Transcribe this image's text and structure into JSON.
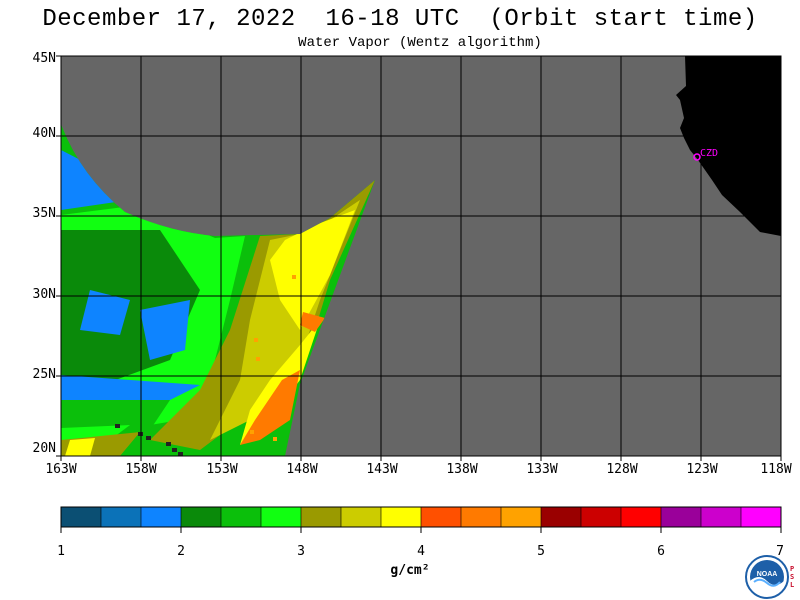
{
  "header": {
    "title": "December 17, 2022  16-18 UTC  (Orbit start time)",
    "subtitle": "Water Vapor (Wentz algorithm)"
  },
  "map": {
    "lat_labels": [
      "45N",
      "40N",
      "35N",
      "30N",
      "25N",
      "20N"
    ],
    "lon_labels": [
      "163W",
      "158W",
      "153W",
      "148W",
      "143W",
      "138W",
      "133W",
      "128W",
      "123W",
      "118W"
    ],
    "station_label": "CZD",
    "colors": {
      "no_data": "#666666",
      "land": "#000000",
      "grid": "#000000",
      "station": "#ff00ff"
    }
  },
  "colorbar": {
    "ticks": [
      "1",
      "2",
      "3",
      "4",
      "5",
      "6",
      "7"
    ],
    "units": "g/cm²",
    "colors": [
      "#0b4f73",
      "#0b72b8",
      "#0e84ff",
      "#0a8a0a",
      "#0bbf0b",
      "#11ff11",
      "#9a9a00",
      "#cccc00",
      "#ffff00",
      "#ff5000",
      "#ff7a00",
      "#ffa200",
      "#9a0000",
      "#cc0000",
      "#ff0000",
      "#9a009a",
      "#cc00cc",
      "#ff00ff"
    ]
  },
  "logo": {
    "text": "NOAA",
    "side_text": "P S L"
  }
}
